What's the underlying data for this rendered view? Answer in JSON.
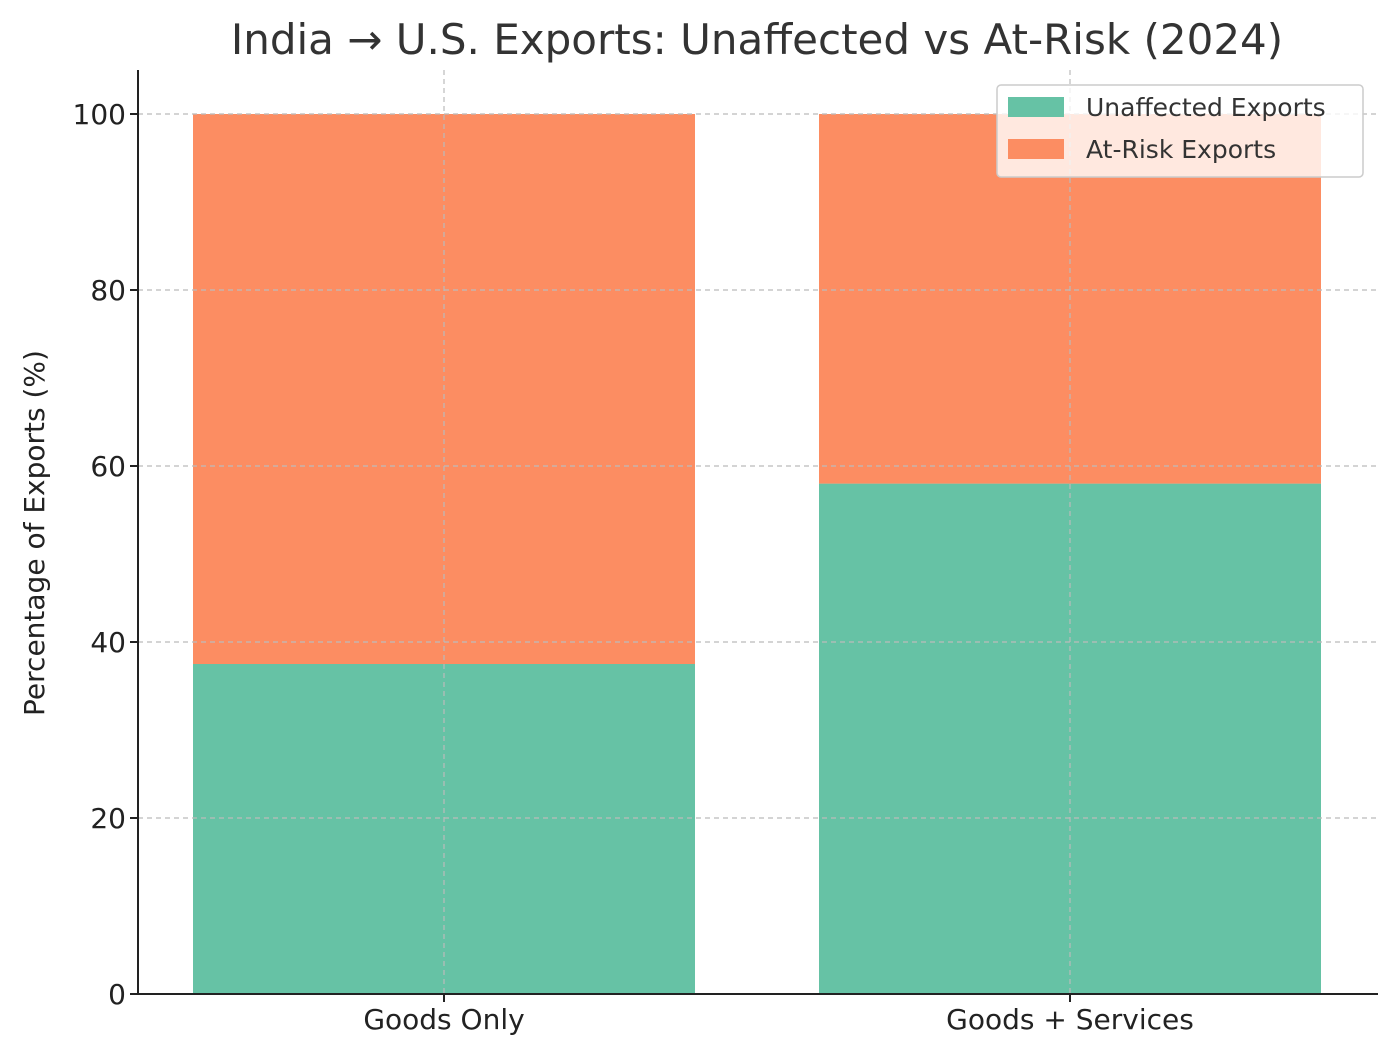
{
  "chart_data": {
    "type": "bar",
    "stacked": true,
    "title": "India → U.S. Exports: Unaffected vs At-Risk (2024)",
    "xlabel": "",
    "ylabel": "Percentage of Exports (%)",
    "categories": [
      "Goods Only",
      "Goods + Services"
    ],
    "series": [
      {
        "name": "Unaffected Exports",
        "values": [
          37.5,
          58.0
        ],
        "color": "#66c2a5"
      },
      {
        "name": "At-Risk Exports",
        "values": [
          62.5,
          42.0
        ],
        "color": "#fc8d62"
      }
    ],
    "ylim": [
      0,
      105
    ],
    "yticks": [
      0,
      20,
      40,
      60,
      80,
      100
    ],
    "grid": true,
    "legend_position": "top-right"
  }
}
